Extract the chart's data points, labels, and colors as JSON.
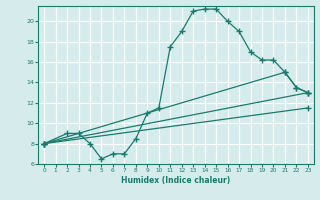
{
  "xlabel": "Humidex (Indice chaleur)",
  "bg_color": "#d6ecec",
  "line_color": "#1a7a6e",
  "grid_color": "#ffffff",
  "xlim": [
    -0.5,
    23.5
  ],
  "ylim": [
    6,
    21.5
  ],
  "yticks": [
    6,
    8,
    10,
    12,
    14,
    16,
    18,
    20
  ],
  "xticks": [
    0,
    1,
    2,
    3,
    4,
    5,
    6,
    7,
    8,
    9,
    10,
    11,
    12,
    13,
    14,
    15,
    16,
    17,
    18,
    19,
    20,
    21,
    22,
    23
  ],
  "line1_x": [
    0,
    2,
    3,
    4,
    5,
    6,
    7,
    8,
    9,
    10,
    11,
    12,
    13,
    14,
    15,
    16,
    17,
    18,
    19,
    20,
    21,
    22,
    23
  ],
  "line1_y": [
    8.0,
    9.0,
    9.0,
    8.0,
    6.5,
    7.0,
    7.0,
    8.5,
    11.0,
    11.5,
    17.5,
    19.0,
    21.0,
    21.2,
    21.2,
    20.0,
    19.0,
    17.0,
    16.2,
    16.2,
    15.0,
    13.5,
    13.0
  ],
  "line2_x": [
    0,
    23
  ],
  "line2_y": [
    8.0,
    13.0
  ],
  "line3_x": [
    0,
    21,
    22,
    23
  ],
  "line3_y": [
    8.0,
    15.0,
    13.5,
    13.0
  ],
  "line4_x": [
    0,
    23
  ],
  "line4_y": [
    8.0,
    11.5
  ]
}
